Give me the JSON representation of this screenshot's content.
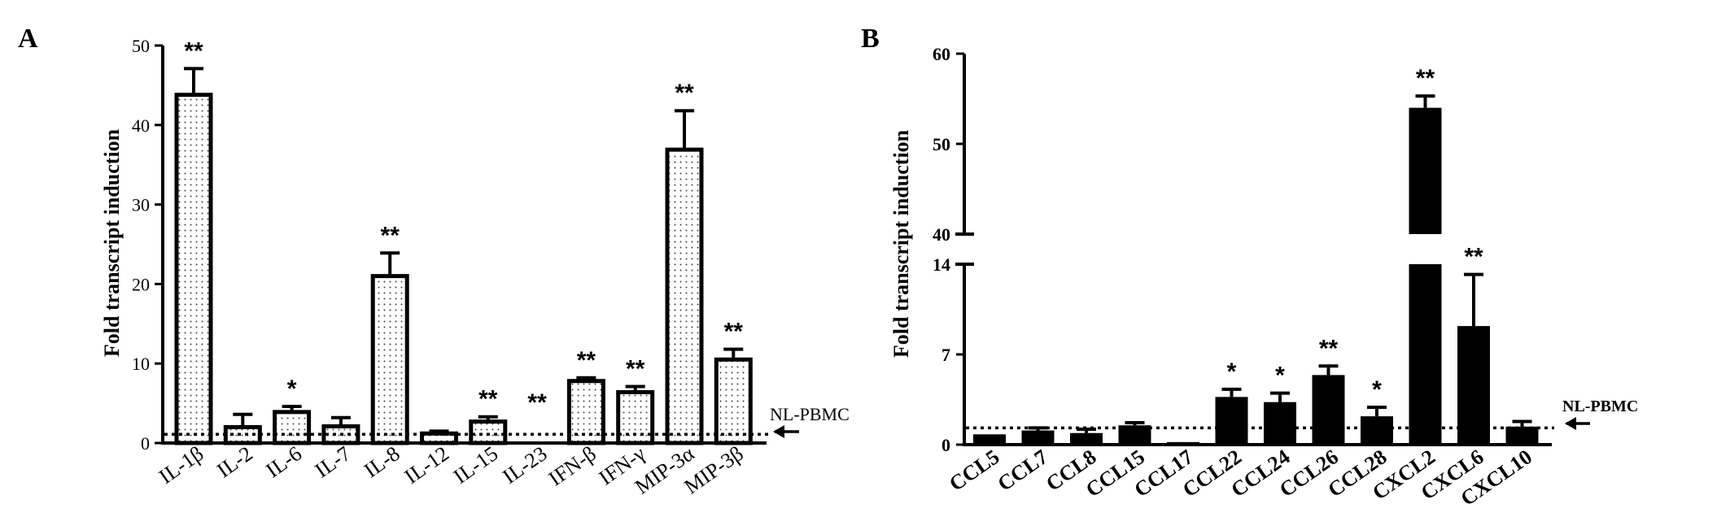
{
  "panels": [
    {
      "letter": "A",
      "ylabel": "Fold transcript induction",
      "reference_label": "NL-PBMC",
      "bar_style": "dotted",
      "y_ticks": [
        0,
        10,
        20,
        30,
        40,
        50
      ]
    },
    {
      "letter": "B",
      "ylabel": "Fold transcript induction",
      "reference_label": "NL-PBMC",
      "bar_style": "solid",
      "y_ticks_lower": [
        0,
        7,
        14
      ],
      "y_ticks_upper": [
        40,
        50,
        60
      ]
    }
  ],
  "chart_data": [
    {
      "type": "bar",
      "panel": "A",
      "categories": [
        "IL-1β",
        "IL-2",
        "IL-6",
        "IL-7",
        "IL-8",
        "IL-12",
        "IL-15",
        "IL-23",
        "IFN-β",
        "IFN-γ",
        "MIP-3α",
        "MIP-3β"
      ],
      "values": [
        43.8,
        2.0,
        3.9,
        2.1,
        21.0,
        1.2,
        2.7,
        0,
        7.8,
        6.4,
        36.9,
        10.5
      ],
      "errors": [
        3.3,
        1.6,
        0.7,
        1.1,
        2.9,
        0.3,
        0.6,
        0,
        0.4,
        0.7,
        4.9,
        1.3
      ],
      "significance": [
        "**",
        "",
        "*",
        "",
        "**",
        "",
        "**",
        "**",
        "**",
        "**",
        "**",
        "**"
      ],
      "reference_line": 1.1,
      "ylabel": "Fold transcript induction",
      "ylim": [
        0,
        50
      ],
      "grid": false
    },
    {
      "type": "bar",
      "panel": "B",
      "categories": [
        "CCL5",
        "CCL7",
        "CCL8",
        "CCL15",
        "CCL17",
        "CCL22",
        "CCL24",
        "CCL26",
        "CCL28",
        "CXCL2",
        "CXCL6",
        "CXCL10"
      ],
      "values": [
        0.8,
        1.1,
        0.9,
        1.5,
        0.2,
        3.7,
        3.3,
        5.4,
        2.2,
        54.0,
        9.2,
        1.4
      ],
      "errors": [
        0,
        0.2,
        0.3,
        0.2,
        0,
        0.6,
        0.7,
        0.7,
        0.7,
        1.3,
        4.0,
        0.4
      ],
      "significance": [
        "",
        "",
        "",
        "",
        "",
        "*",
        "*",
        "**",
        "*",
        "**",
        "**",
        ""
      ],
      "reference_line": 1.3,
      "ylabel": "Fold transcript induction",
      "axis_break": [
        14,
        40
      ],
      "ylim": [
        0,
        60
      ],
      "grid": false
    }
  ]
}
